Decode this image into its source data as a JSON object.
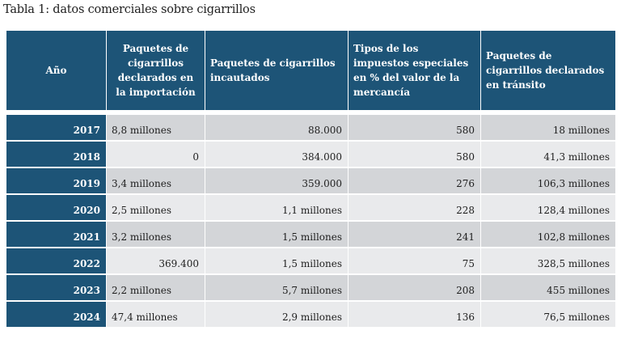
{
  "caption": "Tabla 1: datos comerciales sobre cigarrillos",
  "headers": [
    "Año",
    "Paquetes de cigarrillos declarados en la importación",
    "Paquetes de cigarrillos incautados",
    "Tipos de los impuestos especiales en % del valor de la mercancía",
    "Paquetes de cigarrillos declarados en tránsito"
  ],
  "rows": [
    {
      "year": "2017",
      "import": "8,8 millones",
      "seized": "88.000",
      "tax": "580",
      "transit": "18 millones"
    },
    {
      "year": "2018",
      "import": "0",
      "seized": "384.000",
      "tax": "580",
      "transit": "41,3 millones"
    },
    {
      "year": "2019",
      "import": "3,4 millones",
      "seized": "359.000",
      "tax": "276",
      "transit": "106,3 millones"
    },
    {
      "year": "2020",
      "import": "2,5 millones",
      "seized": "1,1 millones",
      "tax": "228",
      "transit": "128,4 millones"
    },
    {
      "year": "2021",
      "import": "3,2 millones",
      "seized": "1,5 millones",
      "tax": "241",
      "transit": "102,8 millones"
    },
    {
      "year": "2022",
      "import": "369.400",
      "seized": "1,5 millones",
      "tax": "75",
      "transit": "328,5 millones"
    },
    {
      "year": "2023",
      "import": "2,2 millones",
      "seized": "5,7 millones",
      "tax": "208",
      "transit": "455 millones"
    },
    {
      "year": "2024",
      "import": "47,4 millones",
      "seized": "2,9 millones",
      "tax": "136",
      "transit": "76,5 millones"
    }
  ],
  "colors": {
    "header_bg": "#1d5477",
    "row_odd": "#d3d5d8",
    "row_even": "#e9eaec"
  }
}
